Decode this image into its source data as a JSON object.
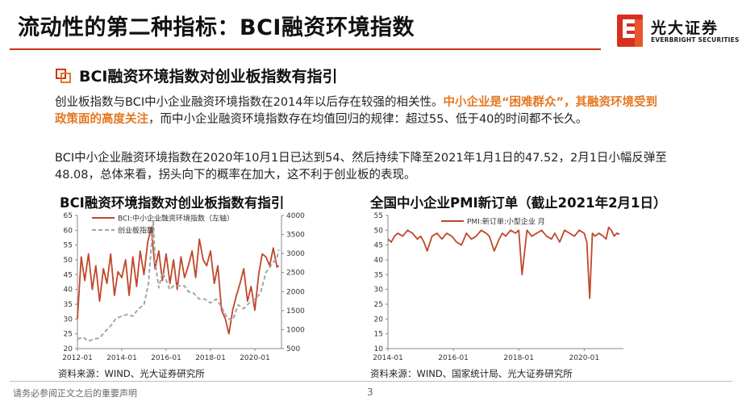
{
  "header": {
    "title": "流动性的第二种指标：BCI融资环境指数",
    "logo_name": "光大证券",
    "logo_en": "EVERBRIGHT SECURITIES"
  },
  "section": {
    "title": "BCI融资环境指数对创业板指数有指引"
  },
  "paragraph1": {
    "part1": "创业板指数与BCI中小企业融资环境指数在2014年以后存在较强的相关性。",
    "highlight": "中小企业是“困难群众”，其融资环境受到政策面的高度关注",
    "part2": "，而中小企业融资环境指数存在均值回归的规律：超过55、低于40的时间都不长久。"
  },
  "paragraph2": "BCI中小企业融资环境指数在2020年10月1日已达到54、然后持续下降至2021年1月1日的47.52，2月1日小幅反弹至48.08，总体来看，拐头向下的概率在加大，这不利于创业板的表现。",
  "colors": {
    "accent": "#c8361d",
    "highlight": "#e37722",
    "series_dark": "#c0472a",
    "series_gray": "#a6a6a6"
  },
  "chart_left": {
    "heading": "BCI融资环境指数对创业板指数有指引",
    "source": "资料来源：WIND、光大证券研究所"
  },
  "chart_right": {
    "heading": "全国中小企业PMI新订单（截止2021年2月1日）",
    "source": "资料来源：WIND、国家统计局、光大证券研究所"
  },
  "footer": {
    "disclaimer": "请务必参阅正文之后的重要声明",
    "page": "3"
  },
  "chart_data": [
    {
      "type": "line",
      "title": "BCI融资环境指数对创业板指数有指引",
      "x_range": [
        2012.0,
        2021.2
      ],
      "x_ticks": [
        {
          "v": 2012.0,
          "label": "2012-01"
        },
        {
          "v": 2014.0,
          "label": "2014-01"
        },
        {
          "v": 2016.0,
          "label": "2016-01"
        },
        {
          "v": 2018.0,
          "label": "2018-01"
        },
        {
          "v": 2020.0,
          "label": "2020-01"
        }
      ],
      "y_left": {
        "min": 20,
        "max": 65,
        "step": 5
      },
      "y_right": {
        "min": 500,
        "max": 4000,
        "step": 500
      },
      "series": [
        {
          "name": "BCI:中小企业融资环境指数（左轴）",
          "axis": "left",
          "style": "solid",
          "x": [
            2012.0,
            2012.17,
            2012.33,
            2012.5,
            2012.67,
            2012.83,
            2013.0,
            2013.17,
            2013.33,
            2013.5,
            2013.67,
            2013.83,
            2014.0,
            2014.17,
            2014.33,
            2014.5,
            2014.67,
            2014.83,
            2015.0,
            2015.17,
            2015.33,
            2015.5,
            2015.67,
            2015.83,
            2016.0,
            2016.17,
            2016.33,
            2016.5,
            2016.67,
            2016.83,
            2017.0,
            2017.17,
            2017.33,
            2017.5,
            2017.67,
            2017.83,
            2018.0,
            2018.17,
            2018.33,
            2018.5,
            2018.67,
            2018.83,
            2019.0,
            2019.17,
            2019.33,
            2019.5,
            2019.67,
            2019.83,
            2020.0,
            2020.17,
            2020.33,
            2020.5,
            2020.67,
            2020.75,
            2020.83,
            2021.0,
            2021.08
          ],
          "values": [
            30,
            51,
            43,
            52,
            40,
            48,
            36,
            47,
            42,
            52,
            38,
            46,
            44,
            50,
            38,
            51,
            41,
            53,
            45,
            56,
            61,
            47,
            53,
            43,
            52,
            42,
            50,
            40,
            51,
            44,
            48,
            53,
            44,
            57,
            50,
            48,
            53,
            42,
            48,
            33,
            30,
            25,
            33,
            38,
            42,
            47,
            36,
            41,
            33,
            45,
            52,
            51,
            48,
            51,
            54,
            47.52,
            48.08
          ]
        },
        {
          "name": "创业板指数",
          "axis": "right",
          "style": "dashed",
          "x": [
            2012.0,
            2012.25,
            2012.5,
            2012.75,
            2013.0,
            2013.25,
            2013.5,
            2013.75,
            2014.0,
            2014.25,
            2014.5,
            2014.75,
            2015.0,
            2015.2,
            2015.42,
            2015.5,
            2015.67,
            2015.83,
            2016.0,
            2016.17,
            2016.33,
            2016.5,
            2016.67,
            2016.83,
            2017.0,
            2017.25,
            2017.5,
            2017.75,
            2018.0,
            2018.25,
            2018.5,
            2018.75,
            2019.0,
            2019.25,
            2019.5,
            2019.75,
            2020.0,
            2020.25,
            2020.5,
            2020.75,
            2021.0,
            2021.08
          ],
          "values": [
            750,
            800,
            700,
            750,
            780,
            950,
            1100,
            1300,
            1350,
            1400,
            1350,
            1550,
            1650,
            2200,
            3850,
            2800,
            2100,
            2500,
            2300,
            2050,
            2150,
            2150,
            2150,
            2150,
            2000,
            1950,
            1800,
            1800,
            1700,
            1800,
            1600,
            1300,
            1250,
            1650,
            1550,
            1700,
            1800,
            1950,
            2500,
            2700,
            2900,
            3100
          ]
        }
      ]
    },
    {
      "type": "line",
      "title": "全国中小企业PMI新订单（截止2021年2月1日）",
      "x_range": [
        2014.0,
        2021.2
      ],
      "x_ticks": [
        {
          "v": 2014.0,
          "label": "2014-01"
        },
        {
          "v": 2016.0,
          "label": "2016-01"
        },
        {
          "v": 2018.0,
          "label": "2018-01"
        },
        {
          "v": 2020.0,
          "label": "2020-01"
        }
      ],
      "y_axis": {
        "min": 10,
        "max": 55,
        "step": 5
      },
      "series": [
        {
          "name": "PMI:新订单:小型企业 月",
          "axis": "left",
          "style": "solid",
          "x": [
            2014.0,
            2014.1,
            2014.2,
            2014.3,
            2014.45,
            2014.6,
            2014.75,
            2014.9,
            2015.0,
            2015.1,
            2015.2,
            2015.35,
            2015.5,
            2015.65,
            2015.8,
            2015.95,
            2016.1,
            2016.25,
            2016.4,
            2016.55,
            2016.7,
            2016.85,
            2017.0,
            2017.1,
            2017.25,
            2017.4,
            2017.5,
            2017.6,
            2017.75,
            2017.9,
            2018.0,
            2018.1,
            2018.25,
            2018.4,
            2018.55,
            2018.7,
            2018.85,
            2019.0,
            2019.1,
            2019.25,
            2019.4,
            2019.55,
            2019.7,
            2019.85,
            2020.0,
            2020.08,
            2020.17,
            2020.25,
            2020.33,
            2020.45,
            2020.58,
            2020.67,
            2020.75,
            2020.83,
            2020.92,
            2021.0,
            2021.08
          ],
          "values": [
            47,
            46,
            48,
            49,
            48,
            50,
            49,
            47,
            48,
            46,
            43,
            48,
            49,
            47,
            49,
            48,
            46,
            45,
            49,
            47,
            48,
            50,
            49,
            48,
            43,
            47,
            49,
            48,
            50,
            49,
            50,
            35,
            50,
            48,
            49,
            50,
            48,
            47,
            49,
            46,
            50,
            49,
            48,
            50,
            49,
            46,
            27,
            49,
            48,
            49,
            48,
            47,
            51,
            50,
            48,
            49,
            48.7
          ]
        }
      ]
    }
  ]
}
